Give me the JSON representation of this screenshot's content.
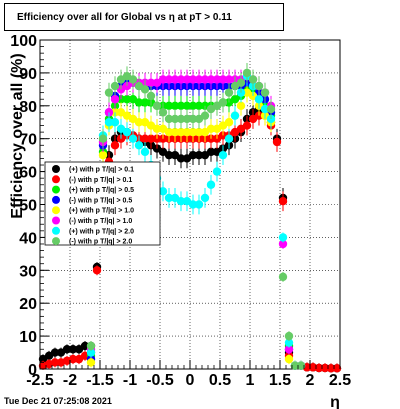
{
  "title": "Efficiency over all for Global vs   η at pT > 0.11",
  "footer": "Tue Dec 21 07:25:08 2021",
  "chart_data": {
    "type": "scatter",
    "xlabel": "η",
    "ylabel": "Efficiency over all (%)",
    "xlim": [
      -2.5,
      2.5
    ],
    "ylim": [
      0,
      100
    ],
    "xticks": [
      "-2.5",
      "-2",
      "-1.5",
      "-1",
      "-0.5",
      "0",
      "0.5",
      "1",
      "1.5",
      "2",
      "2.5"
    ],
    "yticks": [
      "0",
      "10",
      "20",
      "30",
      "40",
      "50",
      "60",
      "70",
      "80",
      "90",
      "100"
    ],
    "grid": true,
    "legend_position": "left-middle",
    "x": [
      -2.45,
      -2.35,
      -2.25,
      -2.15,
      -2.05,
      -1.95,
      -1.85,
      -1.75,
      -1.65,
      -1.55,
      -1.45,
      -1.35,
      -1.25,
      -1.15,
      -1.05,
      -0.95,
      -0.85,
      -0.75,
      -0.65,
      -0.55,
      -0.45,
      -0.35,
      -0.25,
      -0.15,
      -0.05,
      0.05,
      0.15,
      0.25,
      0.35,
      0.45,
      0.55,
      0.65,
      0.75,
      0.85,
      0.95,
      1.05,
      1.15,
      1.25,
      1.35,
      1.45,
      1.55,
      1.65,
      1.75,
      1.85,
      1.95,
      2.05,
      2.15,
      2.25,
      2.35,
      2.45
    ],
    "series": [
      {
        "name": "(+) with p T/|q| > 0.1",
        "color": "#000000",
        "values": [
          3,
          4,
          5,
          5,
          6,
          6,
          6,
          7,
          7,
          31,
          60,
          65,
          70,
          72,
          72,
          71,
          70,
          69,
          68,
          67,
          66,
          65,
          65,
          64,
          64,
          65,
          65,
          65,
          66,
          66,
          67,
          68,
          70,
          72,
          76,
          78,
          79,
          78,
          75,
          70,
          52,
          5,
          1,
          1,
          0.5,
          0.5,
          0.3,
          0.3,
          0.2,
          0.2
        ]
      },
      {
        "name": "(-) with p T/|q| > 0.1",
        "color": "#ff0000",
        "values": [
          1,
          1.5,
          2,
          2,
          2.5,
          3,
          3,
          4,
          5,
          30,
          58,
          63,
          68,
          70,
          71,
          71,
          70,
          70,
          70,
          70,
          70,
          70,
          70,
          70,
          70,
          70,
          70,
          70,
          70,
          70,
          71,
          71,
          72,
          73,
          74,
          76,
          77,
          77,
          74,
          69,
          51,
          4,
          1,
          1,
          0.5,
          0.5,
          0.3,
          0.3,
          0.2,
          0.2
        ]
      },
      {
        "name": "(+) with p T/|q| > 0.5",
        "color": "#00ee00",
        "values": [
          null,
          null,
          null,
          null,
          null,
          null,
          null,
          null,
          4,
          null,
          66,
          76,
          80,
          82,
          82,
          82,
          81,
          81,
          81,
          80,
          80,
          80,
          80,
          80,
          80,
          80,
          80,
          80,
          80,
          80,
          81,
          81,
          82,
          83,
          85,
          84,
          82,
          80,
          77,
          null,
          null,
          7,
          1,
          1,
          null,
          null,
          null,
          null,
          null,
          null
        ]
      },
      {
        "name": "(-) with p T/|q| > 0.5",
        "color": "#0000ff",
        "values": [
          null,
          null,
          null,
          null,
          null,
          null,
          null,
          null,
          3,
          null,
          68,
          78,
          83,
          86,
          87,
          87,
          86,
          86,
          86,
          86,
          86,
          86,
          86,
          86,
          86,
          86,
          86,
          86,
          86,
          86,
          86,
          86,
          86,
          86,
          87,
          86,
          84,
          82,
          78,
          null,
          null,
          6,
          1,
          1,
          null,
          null,
          null,
          null,
          null,
          null
        ]
      },
      {
        "name": "(+) with p T/|q| > 1.0",
        "color": "#ffff00",
        "values": [
          null,
          null,
          null,
          null,
          null,
          null,
          null,
          null,
          2,
          null,
          65,
          74,
          78,
          78,
          77,
          76,
          75,
          75,
          74,
          73,
          73,
          72,
          72,
          72,
          72,
          72,
          72,
          72,
          73,
          73,
          74,
          75,
          77,
          80,
          84,
          83,
          80,
          77,
          75,
          null,
          null,
          3,
          1,
          1,
          null,
          null,
          null,
          null,
          null,
          null
        ]
      },
      {
        "name": "(-) with p T/|q| > 1.0",
        "color": "#ff00ff",
        "values": [
          null,
          null,
          null,
          null,
          null,
          null,
          null,
          null,
          6,
          null,
          69,
          78,
          82,
          85,
          86,
          87,
          87,
          87,
          87,
          87,
          88,
          88,
          88,
          88,
          88,
          88,
          88,
          88,
          88,
          88,
          88,
          88,
          88,
          88,
          89,
          88,
          86,
          84,
          80,
          null,
          38,
          6,
          1,
          1,
          null,
          null,
          null,
          null,
          null,
          null
        ]
      },
      {
        "name": "(+) with p T/|q| > 2.0",
        "color": "#00ffff",
        "values": [
          null,
          null,
          null,
          null,
          null,
          null,
          null,
          null,
          5,
          null,
          71,
          75,
          75,
          73,
          72,
          70,
          68,
          66,
          62,
          58,
          54,
          52,
          52,
          51,
          51,
          50,
          50,
          52,
          56,
          60,
          65,
          70,
          77,
          84,
          89,
          86,
          82,
          79,
          76,
          null,
          40,
          8,
          1,
          1,
          null,
          null,
          null,
          null,
          null,
          null
        ]
      },
      {
        "name": "(-) with p T/|q| > 2.0",
        "color": "#66cc66",
        "values": [
          null,
          null,
          null,
          null,
          null,
          null,
          null,
          null,
          7,
          null,
          70,
          84,
          86,
          88,
          89,
          88,
          86,
          85,
          83,
          80,
          78,
          76,
          76,
          76,
          76,
          76,
          76,
          77,
          79,
          80,
          81,
          84,
          86,
          87,
          90,
          88,
          86,
          84,
          79,
          null,
          28,
          10,
          1,
          1,
          null,
          null,
          null,
          null,
          null,
          null
        ]
      }
    ]
  }
}
